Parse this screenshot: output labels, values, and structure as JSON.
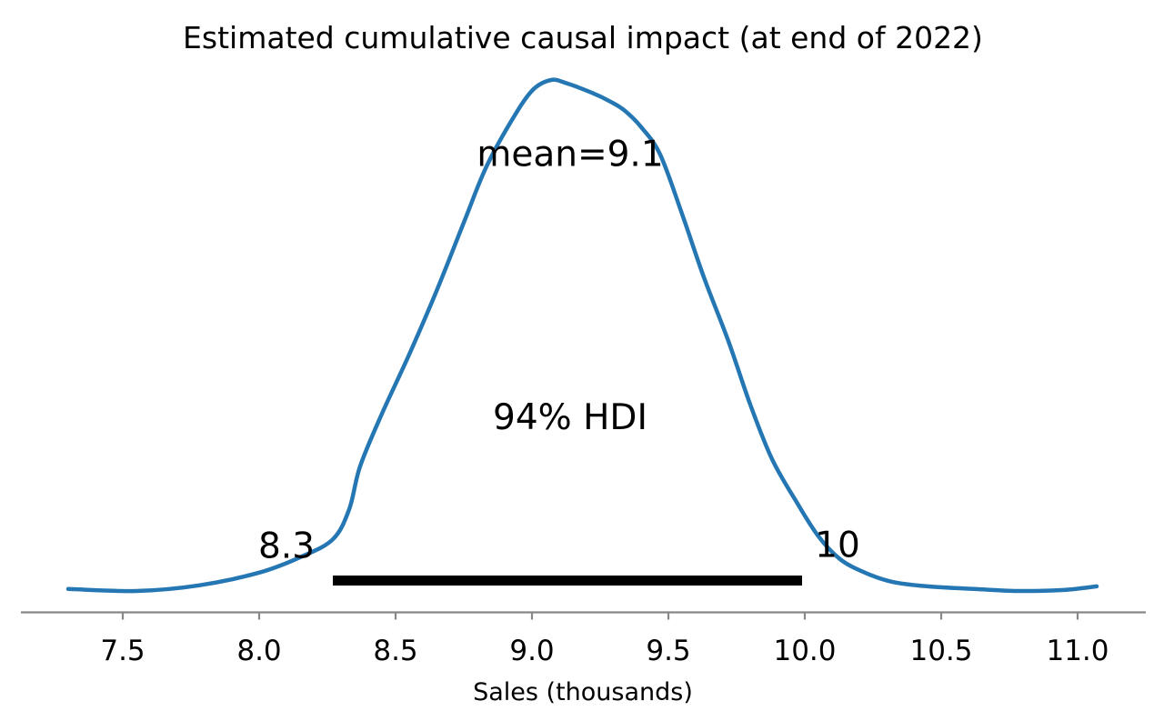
{
  "chart_data": {
    "type": "line",
    "subtype": "posterior-kde",
    "title": "Estimated cumulative causal impact (at end of 2022)",
    "xlabel": "Sales (thousands)",
    "ylabel": "",
    "grid": false,
    "legend": "none",
    "xlim": [
      7.12,
      11.32
    ],
    "x_ticks": [
      7.5,
      8.0,
      8.5,
      9.0,
      9.5,
      10.0,
      10.5,
      11.0
    ],
    "x_tick_labels": [
      "7.5",
      "8.0",
      "8.5",
      "9.0",
      "9.5",
      "10.0",
      "10.5",
      "11.0"
    ],
    "mean": 9.1,
    "hdi": {
      "prob": 0.94,
      "lower": 8.27,
      "upper": 9.99,
      "lower_label": "8.3",
      "upper_label": "10",
      "bar_color": "#000000"
    },
    "series": [
      {
        "name": "posterior density",
        "color": "#2577b4",
        "x": [
          7.3,
          7.55,
          7.78,
          8.0,
          8.15,
          8.27,
          8.33,
          8.37,
          8.45,
          8.55,
          8.65,
          8.75,
          8.83,
          8.92,
          9.0,
          9.07,
          9.13,
          9.22,
          9.29,
          9.34,
          9.4,
          9.47,
          9.55,
          9.63,
          9.72,
          9.8,
          9.88,
          9.97,
          10.05,
          10.13,
          10.22,
          10.32,
          10.45,
          10.62,
          10.78,
          10.95,
          11.07
        ],
        "y": [
          0.004,
          0.0,
          0.011,
          0.036,
          0.066,
          0.101,
          0.16,
          0.244,
          0.347,
          0.463,
          0.587,
          0.721,
          0.827,
          0.916,
          0.979,
          1.0,
          0.993,
          0.975,
          0.957,
          0.94,
          0.908,
          0.854,
          0.738,
          0.614,
          0.489,
          0.365,
          0.258,
          0.174,
          0.107,
          0.062,
          0.036,
          0.018,
          0.009,
          0.004,
          0.0,
          0.002,
          0.009
        ]
      }
    ],
    "annotations": {
      "mean": {
        "label": "mean=9.1",
        "x": 9.14,
        "y": 0.857
      },
      "hdi": {
        "label": "94% HDI",
        "x": 9.14,
        "y": 0.342
      },
      "lower": {
        "label": "8.3",
        "x": 8.1,
        "y": 0.09
      },
      "upper": {
        "label": "10",
        "x": 10.12,
        "y": 0.092
      }
    },
    "axis_color": "#888888",
    "text_color": "#000000"
  }
}
